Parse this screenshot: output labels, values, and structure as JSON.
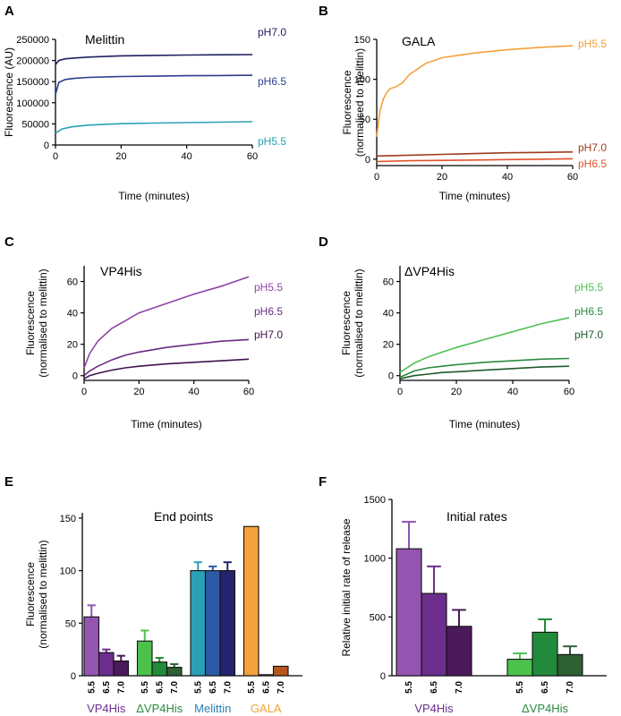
{
  "colors": {
    "axis": "#000000",
    "melittin_ph70": "#1f2060",
    "melittin_ph65": "#2b3d8f",
    "melittin_ph55": "#2aa0b5",
    "gala_ph55": "#f5a03c",
    "gala_ph70": "#9c3b1e",
    "gala_ph65": "#e0522b",
    "vp4_ph55": "#8e44a8",
    "vp4_ph65": "#6b2a86",
    "vp4_ph70": "#3e1450",
    "dvp4_ph55": "#4fbf4f",
    "dvp4_ph65": "#2a8a3e",
    "dvp4_ph70": "#1e5a2c",
    "bar_vp4_55": "#9355b0",
    "bar_vp4_65": "#6c2d8c",
    "bar_vp4_70": "#4b1a5a",
    "bar_dvp4_55": "#4cc24c",
    "bar_dvp4_65": "#228b3b",
    "bar_dvp4_70": "#2f5f34",
    "bar_mel_55": "#2b9fb5",
    "bar_mel_65": "#2d5aa6",
    "bar_mel_70": "#24246e",
    "bar_gala_55": "#f4a23c",
    "bar_gala_65": "#e87a1f",
    "bar_gala_70": "#b5561f",
    "label_vp4": "#6c2d8c",
    "label_dvp4": "#2a8a3e",
    "label_mel": "#2b7fb0",
    "label_gala": "#f4a23c"
  },
  "chart_data": [
    {
      "panel": "A",
      "type": "line",
      "title": "Melittin",
      "xlabel": "Time (minutes)",
      "ylabel": "Fluorescence (AU)",
      "xlim": [
        0,
        60
      ],
      "ylim": [
        0,
        250000
      ],
      "xticks": [
        0,
        20,
        40,
        60
      ],
      "yticks": [
        0,
        50000,
        100000,
        150000,
        200000,
        250000
      ],
      "series": [
        {
          "name": "pH7.0",
          "color_key": "melittin_ph70",
          "x": [
            0,
            1,
            3,
            6,
            10,
            20,
            30,
            40,
            50,
            60
          ],
          "y": [
            190000,
            200000,
            204000,
            206000,
            208000,
            211000,
            212000,
            213000,
            213500,
            214000
          ]
        },
        {
          "name": "pH6.5",
          "color_key": "melittin_ph65",
          "x": [
            0,
            1,
            3,
            6,
            10,
            20,
            30,
            40,
            50,
            60
          ],
          "y": [
            120000,
            148000,
            155000,
            158000,
            160000,
            162000,
            163000,
            164000,
            164500,
            165000
          ]
        },
        {
          "name": "pH5.5",
          "color_key": "melittin_ph55",
          "x": [
            0,
            2,
            5,
            10,
            15,
            20,
            30,
            40,
            50,
            60
          ],
          "y": [
            28000,
            38000,
            43000,
            47000,
            49000,
            50500,
            52000,
            53000,
            54000,
            55000
          ]
        }
      ]
    },
    {
      "panel": "B",
      "type": "line",
      "title": "GALA",
      "xlabel": "Time (minutes)",
      "ylabel": "Fluorescence (normalised to melittin)",
      "xlim": [
        0,
        60
      ],
      "ylim": [
        -8,
        150
      ],
      "xticks": [
        0,
        20,
        40,
        60
      ],
      "yticks": [
        0,
        50,
        100,
        150
      ],
      "series": [
        {
          "name": "pH5.5",
          "color_key": "gala_ph55",
          "x": [
            0,
            0.5,
            1,
            2,
            3,
            4,
            6,
            8,
            10,
            15,
            20,
            30,
            40,
            50,
            60
          ],
          "y": [
            28,
            45,
            60,
            75,
            83,
            88,
            91,
            96,
            106,
            120,
            127,
            133,
            137,
            140,
            142
          ]
        },
        {
          "name": "pH7.0",
          "color_key": "gala_ph70",
          "x": [
            0,
            10,
            20,
            30,
            40,
            50,
            60
          ],
          "y": [
            4,
            5,
            6,
            7,
            8,
            8.5,
            9
          ]
        },
        {
          "name": "pH6.5",
          "color_key": "gala_ph65",
          "x": [
            0,
            10,
            20,
            30,
            40,
            50,
            60
          ],
          "y": [
            -3,
            -2,
            -1.5,
            -1,
            -0.5,
            0,
            0.5
          ]
        }
      ]
    },
    {
      "panel": "C",
      "type": "line",
      "title": "VP4His",
      "xlabel": "Time (minutes)",
      "ylabel": "Fluorescence (normalised to melittin)",
      "xlim": [
        0,
        60
      ],
      "ylim": [
        -3,
        70
      ],
      "xticks": [
        0,
        20,
        40,
        60
      ],
      "yticks": [
        0,
        20,
        40,
        60
      ],
      "series": [
        {
          "name": "pH5.5",
          "color_key": "vp4_ph55",
          "x": [
            0,
            2,
            5,
            10,
            15,
            20,
            30,
            40,
            50,
            60
          ],
          "y": [
            5,
            14,
            22,
            30,
            35,
            40,
            46,
            52,
            57,
            63
          ]
        },
        {
          "name": "pH6.5",
          "color_key": "vp4_ph65",
          "x": [
            0,
            2,
            5,
            10,
            15,
            20,
            30,
            40,
            50,
            60
          ],
          "y": [
            0,
            3,
            6,
            10,
            13,
            15,
            18,
            20,
            22,
            23
          ]
        },
        {
          "name": "pH7.0",
          "color_key": "vp4_ph70",
          "x": [
            0,
            2,
            5,
            10,
            15,
            20,
            30,
            40,
            50,
            60
          ],
          "y": [
            -2,
            0,
            1.5,
            3.5,
            5,
            6,
            7.5,
            8.5,
            9.5,
            10.5
          ]
        }
      ]
    },
    {
      "panel": "D",
      "type": "line",
      "title": "ΔVP4His",
      "xlabel": "Time (minutes)",
      "ylabel": "Fluorescence (normalised to melittin)",
      "xlim": [
        0,
        60
      ],
      "ylim": [
        -3,
        70
      ],
      "xticks": [
        0,
        20,
        40,
        60
      ],
      "yticks": [
        0,
        20,
        40,
        60
      ],
      "series": [
        {
          "name": "pH5.5",
          "color_key": "dvp4_ph55",
          "x": [
            0,
            5,
            10,
            15,
            20,
            30,
            40,
            50,
            60
          ],
          "y": [
            2,
            8,
            12,
            15,
            18,
            23,
            28,
            33,
            37
          ]
        },
        {
          "name": "pH6.5",
          "color_key": "dvp4_ph65",
          "x": [
            0,
            5,
            10,
            15,
            20,
            30,
            40,
            50,
            60
          ],
          "y": [
            -1,
            3,
            5,
            6,
            7,
            8.5,
            9.5,
            10.5,
            11
          ]
        },
        {
          "name": "pH7.0",
          "color_key": "dvp4_ph70",
          "x": [
            0,
            5,
            10,
            15,
            20,
            30,
            40,
            50,
            60
          ],
          "y": [
            -2,
            0,
            1,
            2,
            2.5,
            3.5,
            4.5,
            5.5,
            6
          ]
        }
      ]
    },
    {
      "panel": "E",
      "type": "bar",
      "title": "End points",
      "xlabel": "",
      "ylabel": "Fluorescence (normalised to melittin)",
      "ylim": [
        0,
        155
      ],
      "yticks": [
        0,
        50,
        100,
        150
      ],
      "groups": [
        {
          "name": "VP4His",
          "label_color_key": "label_vp4",
          "bars": [
            {
              "tick": "5.5",
              "value": 56,
              "error": 11,
              "color_key": "bar_vp4_55"
            },
            {
              "tick": "6.5",
              "value": 22,
              "error": 3,
              "color_key": "bar_vp4_65"
            },
            {
              "tick": "7.0",
              "value": 14,
              "error": 5,
              "color_key": "bar_vp4_70"
            }
          ]
        },
        {
          "name": "ΔVP4His",
          "label_color_key": "label_dvp4",
          "bars": [
            {
              "tick": "5.5",
              "value": 33,
              "error": 10,
              "color_key": "bar_dvp4_55"
            },
            {
              "tick": "6.5",
              "value": 13,
              "error": 4,
              "color_key": "bar_dvp4_65"
            },
            {
              "tick": "7.0",
              "value": 8,
              "error": 3,
              "color_key": "bar_dvp4_70"
            }
          ]
        },
        {
          "name": "Melittin",
          "label_color_key": "label_mel",
          "bars": [
            {
              "tick": "5.5",
              "value": 100,
              "error": 8,
              "color_key": "bar_mel_55"
            },
            {
              "tick": "6.5",
              "value": 100,
              "error": 4,
              "color_key": "bar_mel_65"
            },
            {
              "tick": "7.0",
              "value": 100,
              "error": 8,
              "color_key": "bar_mel_70"
            }
          ]
        },
        {
          "name": "GALA",
          "label_color_key": "label_gala",
          "bars": [
            {
              "tick": "5.5",
              "value": 142,
              "error": 0,
              "color_key": "bar_gala_55"
            },
            {
              "tick": "6.5",
              "value": 1,
              "error": 0,
              "color_key": "bar_gala_65"
            },
            {
              "tick": "7.0",
              "value": 9,
              "error": 0,
              "color_key": "bar_gala_70"
            }
          ]
        }
      ]
    },
    {
      "panel": "F",
      "type": "bar",
      "title": "Initial rates",
      "xlabel": "",
      "ylabel": "Relative initial rate of release",
      "ylim": [
        0,
        1500
      ],
      "yticks": [
        0,
        500,
        1000,
        1500
      ],
      "groups": [
        {
          "name": "VP4His",
          "label_color_key": "label_vp4",
          "bars": [
            {
              "tick": "5.5",
              "value": 1080,
              "error": 230,
              "color_key": "bar_vp4_55"
            },
            {
              "tick": "6.5",
              "value": 700,
              "error": 230,
              "color_key": "bar_vp4_65"
            },
            {
              "tick": "7.0",
              "value": 420,
              "error": 140,
              "color_key": "bar_vp4_70"
            }
          ]
        },
        {
          "name": "ΔVP4His",
          "label_color_key": "label_dvp4",
          "bars": [
            {
              "tick": "5.5",
              "value": 140,
              "error": 50,
              "color_key": "bar_dvp4_55"
            },
            {
              "tick": "6.5",
              "value": 370,
              "error": 110,
              "color_key": "bar_dvp4_65"
            },
            {
              "tick": "7.0",
              "value": 180,
              "error": 70,
              "color_key": "bar_dvp4_70"
            }
          ]
        }
      ]
    }
  ]
}
